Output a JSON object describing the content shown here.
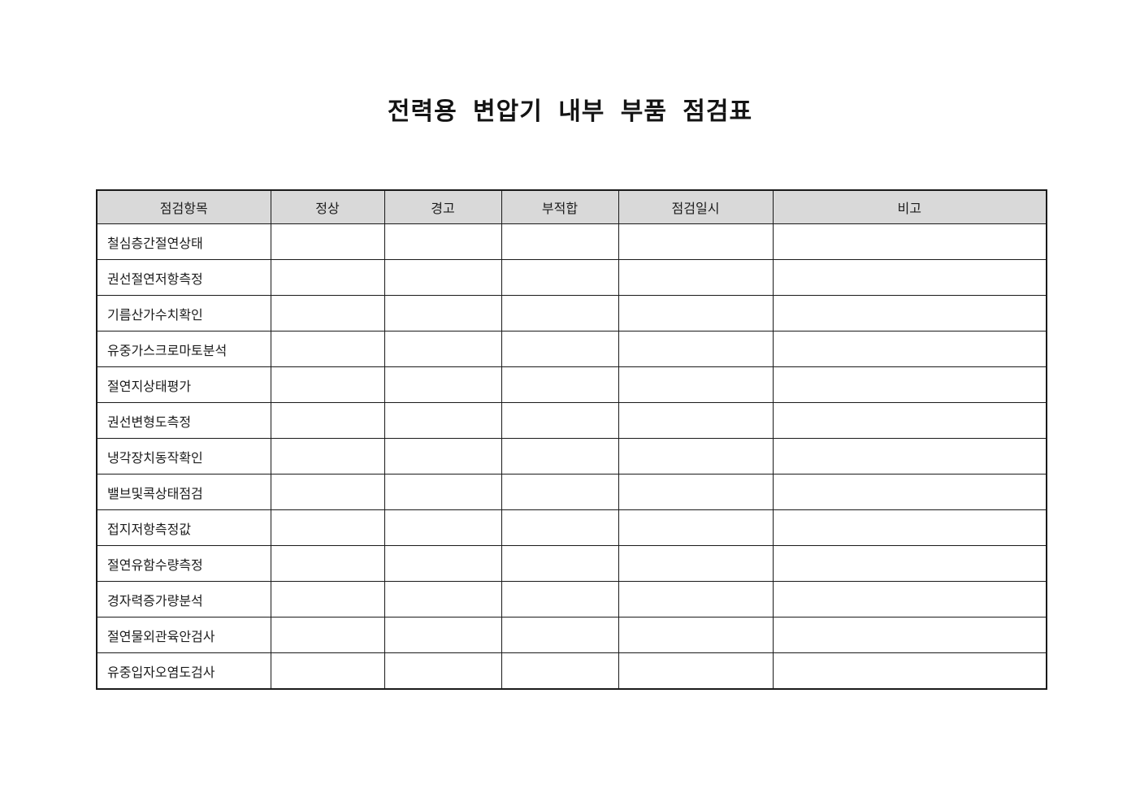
{
  "page": {
    "title": "전력용 변압기 내부 부품 점검표"
  },
  "colors": {
    "header_bg": "#d9d9d9",
    "border": "#1a1a1a",
    "text": "#1c1c1c",
    "page_bg": "#ffffff"
  },
  "table": {
    "headers": [
      "점검항목",
      "정상",
      "경고",
      "부적합",
      "점검일시",
      "비고"
    ],
    "rows": [
      [
        "철심층간절연상태",
        "",
        "",
        "",
        "",
        ""
      ],
      [
        "권선절연저항측정",
        "",
        "",
        "",
        "",
        ""
      ],
      [
        "기름산가수치확인",
        "",
        "",
        "",
        "",
        ""
      ],
      [
        "유중가스크로마토분석",
        "",
        "",
        "",
        "",
        ""
      ],
      [
        "절연지상태평가",
        "",
        "",
        "",
        "",
        ""
      ],
      [
        "권선변형도측정",
        "",
        "",
        "",
        "",
        ""
      ],
      [
        "냉각장치동작확인",
        "",
        "",
        "",
        "",
        ""
      ],
      [
        "밸브및콕상태점검",
        "",
        "",
        "",
        "",
        ""
      ],
      [
        "접지저항측정값",
        "",
        "",
        "",
        "",
        ""
      ],
      [
        "절연유함수량측정",
        "",
        "",
        "",
        "",
        ""
      ],
      [
        "경자력증가량분석",
        "",
        "",
        "",
        "",
        ""
      ],
      [
        "절연물외관육안검사",
        "",
        "",
        "",
        "",
        ""
      ],
      [
        "유중입자오염도검사",
        "",
        "",
        "",
        "",
        ""
      ]
    ]
  }
}
